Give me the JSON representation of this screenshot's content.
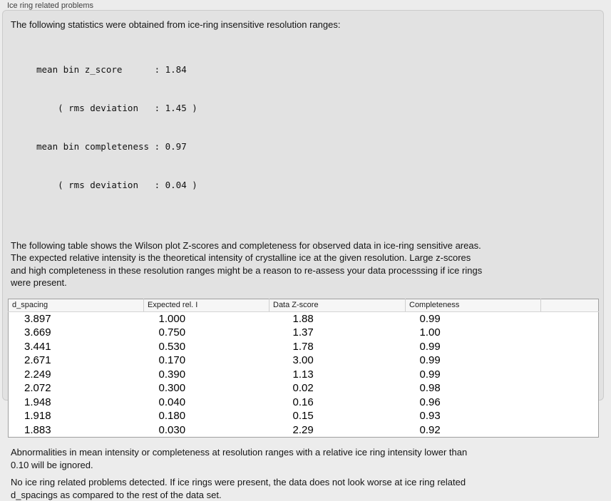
{
  "window": {
    "caption": "Ice ring related problems"
  },
  "panel": {
    "intro": "The following statistics were obtained from ice-ring insensitive resolution ranges:",
    "stats_lines": [
      "mean bin z_score      : 1.84",
      "    ( rms deviation   : 1.45 )",
      "mean bin completeness : 0.97",
      "    ( rms deviation   : 0.04 )"
    ],
    "description_lines": [
      "The following table shows the Wilson plot Z-scores and completeness for observed data in ice-ring sensitive areas.",
      "The expected relative intensity is the theoretical intensity of crystalline ice at the given resolution. Large z-scores",
      "and high completeness in these resolution ranges might be a reason to re-assess your data processsing if ice rings",
      "were present."
    ],
    "table": {
      "headers": [
        "d_spacing",
        "Expected rel. I",
        "Data Z-score",
        "Completeness"
      ],
      "rows": [
        [
          "3.897",
          "1.000",
          "1.88",
          "0.99"
        ],
        [
          "3.669",
          "0.750",
          "1.37",
          "1.00"
        ],
        [
          "3.441",
          "0.530",
          "1.78",
          "0.99"
        ],
        [
          "2.671",
          "0.170",
          "3.00",
          "0.99"
        ],
        [
          "2.249",
          "0.390",
          "1.13",
          "0.99"
        ],
        [
          "2.072",
          "0.300",
          "0.02",
          "0.98"
        ],
        [
          "1.948",
          "0.040",
          "0.16",
          "0.96"
        ],
        [
          "1.918",
          "0.180",
          "0.15",
          "0.93"
        ],
        [
          "1.883",
          "0.030",
          "2.29",
          "0.92"
        ]
      ]
    },
    "note_lines": [
      "Abnormalities in mean intensity or completeness at resolution ranges with a relative ice ring intensity lower than",
      "0.10 will be ignored."
    ],
    "conclusion_lines": [
      "No ice ring related problems detected. If ice rings were present, the data does not look worse at ice ring related",
      "d_spacings as compared to the rest of the data set."
    ],
    "colors": {
      "outer_background": "#ececec",
      "groupbox_fill": "#e2e2e2",
      "table_background": "#ffffff",
      "header_fill": "#f6f6f6"
    }
  }
}
